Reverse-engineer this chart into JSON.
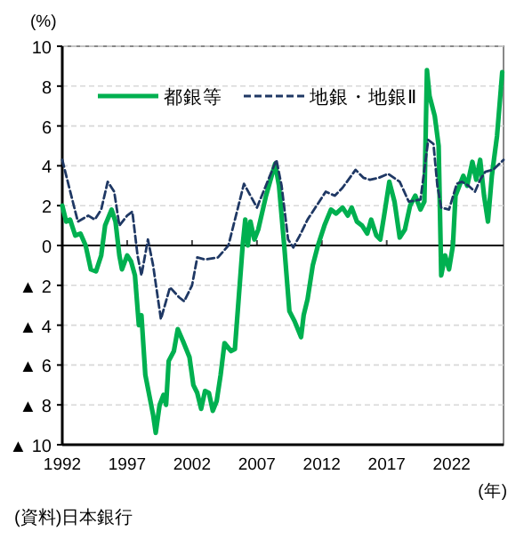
{
  "chart_data": {
    "type": "line",
    "ylabel": "(%)",
    "xlabel": "(年)",
    "annotations": [
      "(資料)日本銀行"
    ],
    "xlim": [
      1992,
      2026
    ],
    "xticks": [
      1992,
      1997,
      2002,
      2007,
      2012,
      2017,
      2022
    ],
    "ylim": [
      -10,
      10
    ],
    "yticks": [
      {
        "value": -10,
        "label": "▲ 10"
      },
      {
        "value": -8,
        "label": "▲ 8"
      },
      {
        "value": -6,
        "label": "▲ 6"
      },
      {
        "value": -4,
        "label": "▲ 4"
      },
      {
        "value": -2,
        "label": "▲ 2"
      },
      0,
      2,
      4,
      6,
      8,
      10
    ],
    "grid": "y",
    "legend": "top",
    "marker": "none",
    "series": [
      {
        "name": "都銀等",
        "color": "#00b050",
        "line_style": "solid",
        "x": [
          1992,
          1992.3,
          1992.6,
          1993,
          1993.4,
          1993.8,
          1994.2,
          1994.6,
          1995,
          1995.3,
          1995.8,
          1996.1,
          1996.4,
          1996.6,
          1997,
          1997.3,
          1997.6,
          1997.9,
          1998.1,
          1998.4,
          1998.7,
          1999,
          1999.2,
          1999.5,
          1999.8,
          2000,
          2000.2,
          2000.6,
          2000.9,
          2001.3,
          2001.8,
          2002.1,
          2002.4,
          2002.7,
          2003,
          2003.3,
          2003.6,
          2003.9,
          2004.2,
          2004.5,
          2005,
          2005.3,
          2005.6,
          2005.9,
          2006.1,
          2006.3,
          2006.5,
          2006.8,
          2007.1,
          2007.7,
          2008.4,
          2008.7,
          2009.1,
          2009.5,
          2009.9,
          2010.4,
          2010.6,
          2010.9,
          2011.3,
          2011.7,
          2012.2,
          2012.7,
          2013.1,
          2013.6,
          2014,
          2014.3,
          2014.7,
          2015.1,
          2015.5,
          2015.8,
          2016.2,
          2016.5,
          2016.8,
          2017.2,
          2017.6,
          2018,
          2018.4,
          2018.8,
          2019.2,
          2019.6,
          2019.9,
          2020.1,
          2020.3,
          2020.7,
          2021,
          2021.2,
          2021.5,
          2021.8,
          2022.1,
          2022.3,
          2022.6,
          2022.9,
          2023.2,
          2023.6,
          2023.9,
          2024.2,
          2024.5,
          2024.8,
          2025.1,
          2025.5,
          2025.9
        ],
        "values": [
          2,
          1.2,
          1.3,
          0.5,
          0.6,
          0,
          -1.2,
          -1.3,
          -0.5,
          1,
          1.8,
          1.2,
          -0.5,
          -1.2,
          -0.5,
          -0.8,
          -1.5,
          -4,
          -3.5,
          -6.5,
          -7.5,
          -8.5,
          -9.4,
          -8,
          -7.5,
          -8,
          -5.8,
          -5.3,
          -4.2,
          -4.8,
          -5.6,
          -7,
          -7.4,
          -8.2,
          -7.3,
          -7.4,
          -8.3,
          -7.8,
          -6.5,
          -4.9,
          -5.3,
          -5.2,
          -2.6,
          0,
          1.3,
          0,
          1.2,
          0.3,
          0.8,
          2.5,
          4.1,
          3,
          0,
          -3.3,
          -3.8,
          -4.6,
          -3.5,
          -2.7,
          -1,
          0,
          1,
          1.8,
          1.6,
          1.9,
          1.5,
          1.9,
          1.2,
          1,
          0.6,
          1.3,
          0.5,
          0.3,
          1.5,
          3.2,
          2.2,
          0.4,
          0.8,
          2,
          2.5,
          1.8,
          2.2,
          8.8,
          7.5,
          6.5,
          5,
          -1.5,
          -0.5,
          -1.2,
          0,
          2.5,
          3,
          3.5,
          3,
          4.2,
          3.3,
          4.3,
          2.5,
          1.2,
          3.5,
          5.5,
          8.7
        ]
      },
      {
        "name": "地銀・地銀Ⅱ",
        "color": "#1f3864",
        "line_style": "dashed",
        "x": [
          1992,
          1992.5,
          1993.2,
          1994,
          1994.5,
          1995,
          1995.5,
          1996,
          1996.4,
          1997,
          1997.4,
          1997.8,
          1998.1,
          1998.6,
          1999,
          1999.6,
          2000.3,
          2001,
          2001.4,
          2002,
          2002.4,
          2003,
          2004,
          2004.8,
          2005.5,
          2006,
          2006.5,
          2007,
          2007.5,
          2008.5,
          2008.9,
          2009.4,
          2009.8,
          2010.3,
          2010.9,
          2012.3,
          2013,
          2013.6,
          2014.6,
          2015.2,
          2015.7,
          2016.4,
          2017.1,
          2018,
          2018.7,
          2019.6,
          2020.2,
          2020.6,
          2020.9,
          2021.2,
          2021.8,
          2022.4,
          2022.8,
          2023.3,
          2023.8,
          2024.2,
          2024.6,
          2025.2,
          2026
        ],
        "values": [
          4.3,
          3,
          1.2,
          1.5,
          1.3,
          1.8,
          3.2,
          2.7,
          1,
          1.5,
          1.7,
          -0.5,
          -1.5,
          0.3,
          -1,
          -3.7,
          -2.1,
          -2.6,
          -2.8,
          -2,
          -0.6,
          -0.7,
          -0.6,
          0,
          1.8,
          3.1,
          2.5,
          1.9,
          2.7,
          4.3,
          3,
          0.3,
          -0.1,
          0.5,
          1.3,
          2.7,
          2.5,
          2.9,
          3.8,
          3.4,
          3.3,
          3.4,
          3.6,
          3.2,
          2.2,
          2.3,
          5.3,
          5.1,
          3,
          1.9,
          1.8,
          3.1,
          3.2,
          3,
          2.7,
          3.3,
          3.7,
          3.8,
          4.3
        ]
      }
    ]
  }
}
